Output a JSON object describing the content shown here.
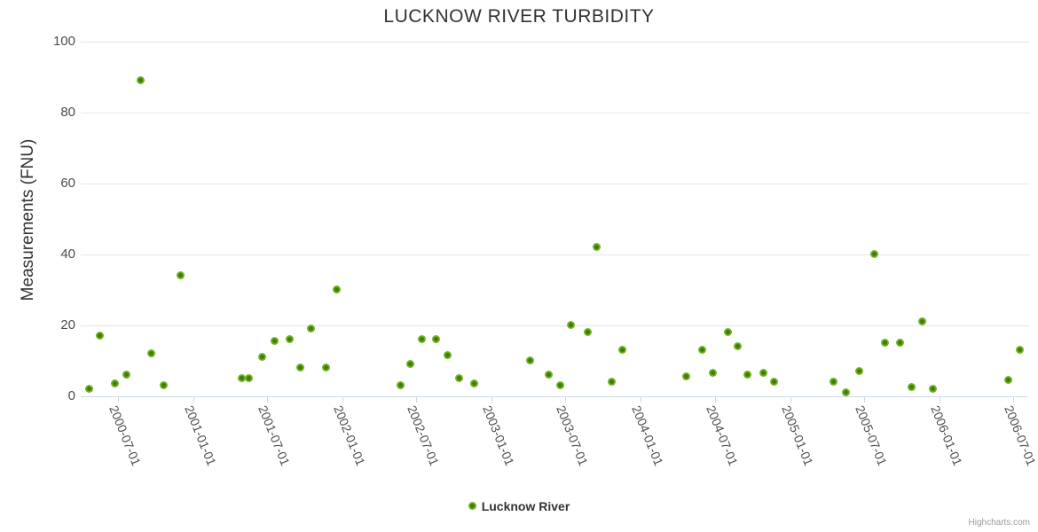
{
  "chart": {
    "credits": "Highcharts.com"
  },
  "chart_data": {
    "type": "scatter",
    "title": "LUCKNOW RIVER TURBIDITY",
    "xlabel": "",
    "ylabel": "Measurements (FNU)",
    "ylim": [
      0,
      100
    ],
    "y_ticks": [
      0,
      20,
      40,
      60,
      80,
      100
    ],
    "x_ticks": [
      "2000-07-01",
      "2001-01-01",
      "2001-07-01",
      "2002-01-01",
      "2002-07-01",
      "2003-01-01",
      "2003-07-01",
      "2004-01-01",
      "2004-07-01",
      "2005-01-01",
      "2005-07-01",
      "2006-01-01",
      "2006-07-01"
    ],
    "xlim": [
      "2000-03-31",
      "2006-08-09"
    ],
    "grid": "horizontal",
    "legend_position": "bottom-center",
    "colors": {
      "marker_outer": "#7cbe2b",
      "marker_mid": "#6db31e",
      "marker_center": "#45770e",
      "gridline": "#e6e6e6",
      "axis_line": "#ccd6eb",
      "title_text": "#333333",
      "label_text": "#4d4d4d",
      "credits_text": "#999999"
    },
    "series": [
      {
        "name": "Lucknow River",
        "points": [
          {
            "date": "2000-04-20",
            "value": 2
          },
          {
            "date": "2000-05-17",
            "value": 17
          },
          {
            "date": "2000-06-22",
            "value": 3.5
          },
          {
            "date": "2000-07-20",
            "value": 6
          },
          {
            "date": "2000-08-24",
            "value": 89
          },
          {
            "date": "2000-09-20",
            "value": 12
          },
          {
            "date": "2000-10-20",
            "value": 3
          },
          {
            "date": "2000-11-30",
            "value": 34
          },
          {
            "date": "2001-04-30",
            "value": 5
          },
          {
            "date": "2001-05-16",
            "value": 5
          },
          {
            "date": "2001-06-19",
            "value": 11
          },
          {
            "date": "2001-07-18",
            "value": 15.5
          },
          {
            "date": "2001-08-24",
            "value": 16
          },
          {
            "date": "2001-09-19",
            "value": 8
          },
          {
            "date": "2001-10-16",
            "value": 19
          },
          {
            "date": "2001-11-21",
            "value": 8
          },
          {
            "date": "2001-12-17",
            "value": 30
          },
          {
            "date": "2002-05-24",
            "value": 3
          },
          {
            "date": "2002-06-17",
            "value": 9
          },
          {
            "date": "2002-07-15",
            "value": 16
          },
          {
            "date": "2002-08-17",
            "value": 16
          },
          {
            "date": "2002-09-15",
            "value": 11.5
          },
          {
            "date": "2002-10-14",
            "value": 5
          },
          {
            "date": "2002-11-20",
            "value": 3.5
          },
          {
            "date": "2003-04-06",
            "value": 10
          },
          {
            "date": "2003-05-21",
            "value": 6
          },
          {
            "date": "2003-06-17",
            "value": 3
          },
          {
            "date": "2003-07-14",
            "value": 20
          },
          {
            "date": "2003-08-25",
            "value": 18
          },
          {
            "date": "2003-09-16",
            "value": 42
          },
          {
            "date": "2003-10-22",
            "value": 4
          },
          {
            "date": "2003-11-17",
            "value": 13
          },
          {
            "date": "2004-04-21",
            "value": 5.5
          },
          {
            "date": "2004-05-30",
            "value": 13
          },
          {
            "date": "2004-06-26",
            "value": 6.5
          },
          {
            "date": "2004-08-01",
            "value": 18
          },
          {
            "date": "2004-08-25",
            "value": 14
          },
          {
            "date": "2004-09-19",
            "value": 6
          },
          {
            "date": "2004-10-27",
            "value": 6.5
          },
          {
            "date": "2004-11-22",
            "value": 4
          },
          {
            "date": "2005-04-18",
            "value": 4
          },
          {
            "date": "2005-05-17",
            "value": 1
          },
          {
            "date": "2005-06-19",
            "value": 7
          },
          {
            "date": "2005-07-25",
            "value": 40
          },
          {
            "date": "2005-08-22",
            "value": 15
          },
          {
            "date": "2005-09-27",
            "value": 15
          },
          {
            "date": "2005-10-26",
            "value": 2.5
          },
          {
            "date": "2005-11-20",
            "value": 21
          },
          {
            "date": "2005-12-17",
            "value": 2
          },
          {
            "date": "2006-06-18",
            "value": 4.5
          },
          {
            "date": "2006-07-17",
            "value": 13
          }
        ]
      }
    ]
  }
}
